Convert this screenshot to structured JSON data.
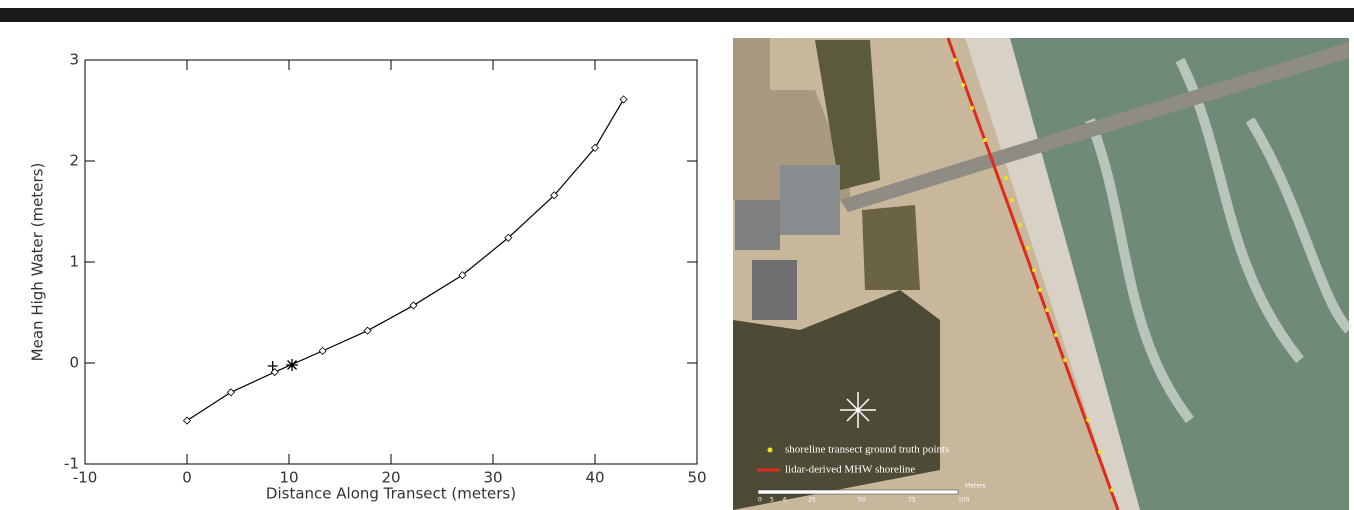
{
  "chart_data": {
    "type": "line",
    "xlabel": "Distance Along Transect (meters)",
    "ylabel": "Mean High Water (meters)",
    "xlim": [
      -10,
      50
    ],
    "xticks": [
      -10,
      0,
      10,
      20,
      30,
      40,
      50
    ],
    "ylim": [
      -1,
      3
    ],
    "yticks": [
      -1,
      0,
      1,
      2,
      3
    ],
    "series": [
      {
        "color": "#000000",
        "marker": "diamond",
        "line": true,
        "x": [
          0,
          4.3,
          8.6,
          13.3,
          17.7,
          22.2,
          27,
          31.5,
          36,
          40,
          42.8
        ],
        "values": [
          -0.57,
          -0.29,
          -0.09,
          0.12,
          0.32,
          0.57,
          0.87,
          1.24,
          1.66,
          2.13,
          2.61
        ]
      },
      {
        "color": "#000000",
        "marker": "plus",
        "line": false,
        "x": [
          8.4
        ],
        "values": [
          -0.03
        ]
      },
      {
        "color": "#000000",
        "marker": "star",
        "line": false,
        "x": [
          10.3
        ],
        "values": [
          -0.02
        ]
      }
    ]
  },
  "map": {
    "legend": [
      "shoreline transect ground truth points",
      "lidar-derived MHW shoreline"
    ],
    "scale_labels": [
      "0",
      "5",
      "6",
      "25",
      "50",
      "75",
      "100",
      "Meters"
    ]
  }
}
